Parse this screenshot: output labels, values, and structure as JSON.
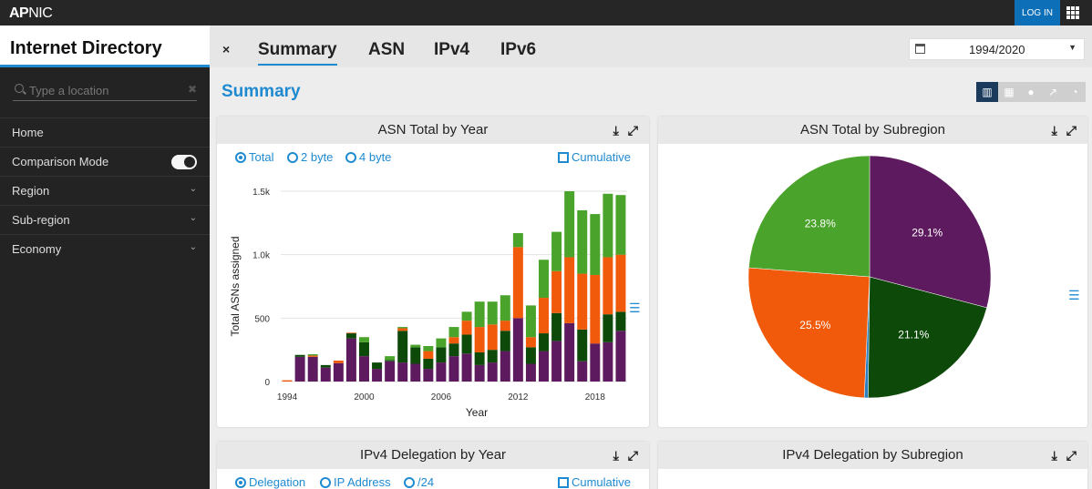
{
  "topbar": {
    "logo_bold": "AP",
    "logo_rest": "NIC",
    "login_label": "LOG IN",
    "apps_icon": "grid-icon"
  },
  "sidebar": {
    "title": "Internet Directory",
    "search_placeholder": "Type a location",
    "items": [
      {
        "label": "Home"
      },
      {
        "label": "Comparison Mode"
      },
      {
        "label": "Region"
      },
      {
        "label": "Sub-region"
      },
      {
        "label": "Economy"
      }
    ]
  },
  "header": {
    "close_label": "×",
    "tabs": [
      {
        "label": "Summary"
      },
      {
        "label": "ASN"
      },
      {
        "label": "IPv4"
      },
      {
        "label": "IPv6"
      }
    ],
    "date_range": "1994/2020"
  },
  "main": {
    "title": "Summary"
  },
  "panels": {
    "asn_year": {
      "title": "ASN Total by Year",
      "options": [
        "Total",
        "2 byte",
        "4 byte"
      ],
      "cumulative_label": "Cumulative"
    },
    "asn_subregion": {
      "title": "ASN Total by Subregion"
    },
    "ipv4_year": {
      "title": "IPv4 Delegation by Year",
      "options": [
        "Delegation",
        "IP Address",
        "/24"
      ],
      "cumulative_label": "Cumulative"
    },
    "ipv4_subregion": {
      "title": "IPv4 Delegation by Subregion"
    }
  },
  "colors": {
    "accent": "#1e8ad0",
    "purple": "#5e1a5e",
    "darkgreen": "#0d4a0a",
    "orange": "#f05a0a",
    "green": "#4aa32a"
  },
  "chart_data": [
    {
      "type": "bar",
      "stacked": true,
      "xlabel": "Year",
      "ylabel": "Total ASNs assigned",
      "ylim": [
        0,
        1500
      ],
      "y_ticks": [
        "0",
        "500",
        "1.0k",
        "1.5k"
      ],
      "x_ticks": [
        "1994",
        "2000",
        "2006",
        "2012",
        "2018"
      ],
      "categories": [
        "1994",
        "1995",
        "1996",
        "1997",
        "1998",
        "1999",
        "2000",
        "2001",
        "2002",
        "2003",
        "2004",
        "2005",
        "2006",
        "2007",
        "2008",
        "2009",
        "2010",
        "2011",
        "2012",
        "2013",
        "2014",
        "2015",
        "2016",
        "2017",
        "2018",
        "2019",
        "2020"
      ],
      "series": [
        {
          "color": "#5e1a5e",
          "values": [
            0,
            195,
            195,
            110,
            145,
            340,
            200,
            100,
            160,
            150,
            140,
            100,
            150,
            200,
            220,
            130,
            150,
            240,
            500,
            140,
            240,
            320,
            460,
            160,
            300,
            310,
            400
          ]
        },
        {
          "color": "#0d4a0a",
          "values": [
            0,
            15,
            0,
            20,
            0,
            40,
            110,
            50,
            10,
            250,
            130,
            80,
            120,
            100,
            150,
            100,
            100,
            160,
            0,
            130,
            140,
            220,
            0,
            250,
            0,
            220,
            150
          ]
        },
        {
          "color": "#f05a0a",
          "values": [
            10,
            0,
            10,
            0,
            20,
            5,
            0,
            0,
            0,
            20,
            0,
            60,
            0,
            50,
            110,
            200,
            200,
            80,
            560,
            80,
            280,
            330,
            520,
            440,
            540,
            450,
            450
          ]
        },
        {
          "color": "#4aa32a",
          "values": [
            0,
            0,
            10,
            0,
            0,
            0,
            40,
            0,
            30,
            10,
            20,
            40,
            70,
            80,
            70,
            200,
            180,
            200,
            110,
            250,
            300,
            310,
            520,
            500,
            480,
            500,
            470
          ]
        }
      ]
    },
    {
      "type": "pie",
      "slices": [
        {
          "label": "29.1%",
          "value": 29.1,
          "color": "#5e1a5e"
        },
        {
          "label": "21.1%",
          "value": 21.1,
          "color": "#0d4a0a"
        },
        {
          "label": "",
          "value": 0.5,
          "color": "#2a7fc0"
        },
        {
          "label": "25.5%",
          "value": 25.5,
          "color": "#f05a0a"
        },
        {
          "label": "23.8%",
          "value": 23.8,
          "color": "#4aa32a"
        }
      ]
    }
  ]
}
